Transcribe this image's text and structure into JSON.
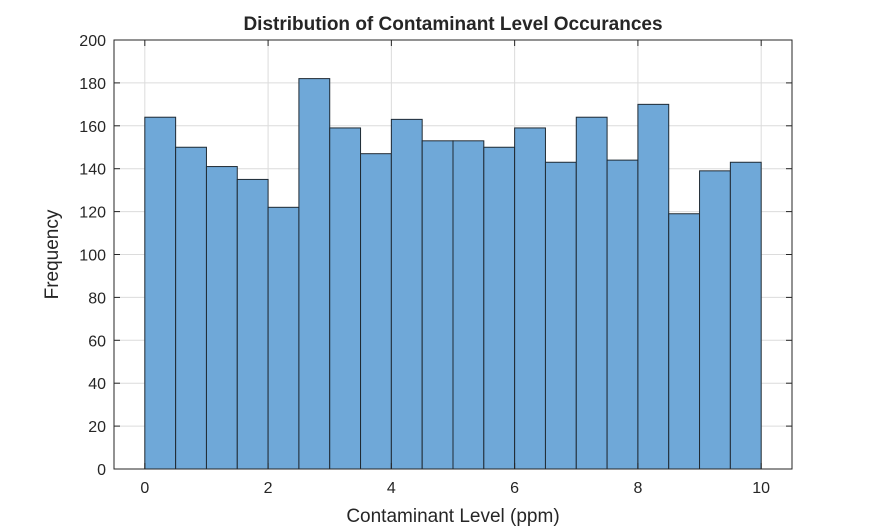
{
  "chart_data": {
    "type": "bar",
    "title": "Distribution of Contaminant Level Occurances",
    "xlabel": "Contaminant Level (ppm)",
    "ylabel": "Frequency",
    "xlim": [
      -0.5,
      10.5
    ],
    "ylim": [
      0,
      200
    ],
    "xticks": [
      0,
      2,
      4,
      6,
      8,
      10
    ],
    "yticks": [
      0,
      20,
      40,
      60,
      80,
      100,
      120,
      140,
      160,
      180,
      200
    ],
    "bin_edges": [
      0,
      0.5,
      1,
      1.5,
      2,
      2.5,
      3,
      3.5,
      4,
      4.5,
      5,
      5.5,
      6,
      6.5,
      7,
      7.5,
      8,
      8.5,
      9,
      9.5,
      10
    ],
    "values": [
      164,
      150,
      141,
      135,
      122,
      182,
      159,
      147,
      163,
      153,
      153,
      150,
      159,
      143,
      164,
      144,
      170,
      119,
      139,
      143
    ],
    "grid": true,
    "bar_color": "#6fa8d8",
    "edge_color": "#1f2a33"
  }
}
